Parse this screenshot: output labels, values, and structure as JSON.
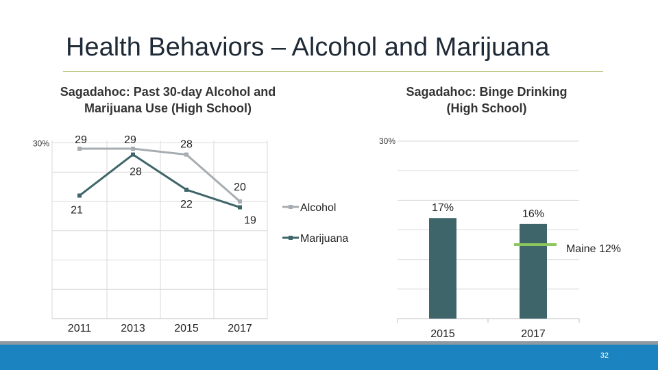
{
  "slide": {
    "title": "Health Behaviors – Alcohol and Marijuana",
    "page_number": "32"
  },
  "chart_data": [
    {
      "type": "line",
      "title": "Sagadahoc: Past 30-day Alcohol and Marijuana Use (High School)",
      "y_tick_label": "30%",
      "ylim": [
        0,
        30
      ],
      "categories": [
        "2011",
        "2013",
        "2015",
        "2017"
      ],
      "series": [
        {
          "name": "Alcohol",
          "color": "#a6adb2",
          "values": [
            29,
            29,
            28,
            20
          ],
          "labels": [
            "29",
            "29",
            "28",
            "20"
          ]
        },
        {
          "name": "Marijuana",
          "color": "#3e6569",
          "values": [
            21,
            28,
            22,
            19
          ],
          "labels": [
            "21",
            "28",
            "22",
            "19"
          ]
        }
      ],
      "legend": [
        "Alcohol",
        "Marijuana"
      ],
      "legend_position": "right",
      "grid": true
    },
    {
      "type": "bar",
      "title": "Sagadahoc: Binge Drinking (High School)",
      "y_tick_label": "30%",
      "ylim": [
        0,
        30
      ],
      "categories": [
        "2015",
        "2017"
      ],
      "values": [
        17,
        16
      ],
      "value_labels": [
        "17%",
        "16%"
      ],
      "bar_color": "#3e6569",
      "reference": {
        "label": "Maine 12%",
        "value": 12,
        "color": "#8cc65c"
      },
      "grid": true
    }
  ]
}
